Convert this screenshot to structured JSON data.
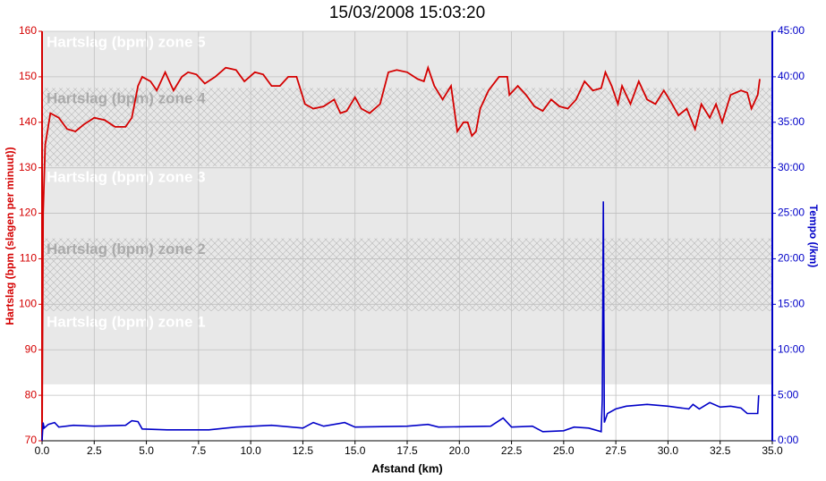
{
  "chart_data": {
    "type": "line",
    "title": "15/03/2008 15:03:20",
    "x_label": "Afstand (km)",
    "y_label": "Hartslag (bpm (slagen per minuut))",
    "y2_label": "Tempo (/km)",
    "xlim": [
      0,
      35
    ],
    "xticks": [
      {
        "value": 0,
        "label": "0.0"
      },
      2.5,
      {
        "value": 5,
        "label": "5.0"
      },
      7.5,
      {
        "value": 10,
        "label": "10.0"
      },
      12.5,
      {
        "value": 15,
        "label": "15.0"
      },
      17.5,
      {
        "value": 20,
        "label": "20.0"
      },
      22.5,
      {
        "value": 25,
        "label": "25.0"
      },
      27.5,
      {
        "value": 30,
        "label": "30.0"
      },
      32.5,
      {
        "value": 35,
        "label": "35.0"
      }
    ],
    "ylim": [
      70,
      160
    ],
    "yticks": [
      70,
      80,
      90,
      100,
      110,
      120,
      130,
      140,
      150,
      160
    ],
    "y2lim": [
      0,
      45
    ],
    "y2ticks": [
      {
        "value": 0,
        "label": "0:00"
      },
      {
        "value": 5,
        "label": "5:00"
      },
      {
        "value": 10,
        "label": "10:00"
      },
      {
        "value": 15,
        "label": "15:00"
      },
      {
        "value": 20,
        "label": "20:00"
      },
      {
        "value": 25,
        "label": "25:00"
      },
      {
        "value": 30,
        "label": "30:00"
      },
      {
        "value": 35,
        "label": "35:00"
      },
      {
        "value": 40,
        "label": "40:00"
      },
      {
        "value": 45,
        "label": "45:00"
      }
    ],
    "grid": true,
    "zones": [
      {
        "name": "Hartslag (bpm) zone 1",
        "range": [
          82.4,
          98.5
        ],
        "hatched": false
      },
      {
        "name": "Hartslag (bpm) zone 2",
        "range": [
          98.5,
          114.5
        ],
        "hatched": true
      },
      {
        "name": "Hartslag (bpm) zone 3",
        "range": [
          114.5,
          130.3
        ],
        "hatched": false
      },
      {
        "name": "Hartslag (bpm) zone 4",
        "range": [
          130.3,
          147.6
        ],
        "hatched": true
      },
      {
        "name": "Hartslag (bpm) zone 5",
        "range": [
          147.6,
          160
        ],
        "hatched": false
      }
    ],
    "series": [
      {
        "name": "Hartslag",
        "color": "#d40000",
        "axis": "y",
        "x": [
          0,
          0.05,
          0.15,
          0.4,
          0.8,
          1.2,
          1.6,
          2.0,
          2.5,
          3.0,
          3.5,
          4.0,
          4.3,
          4.6,
          4.8,
          5.2,
          5.5,
          5.9,
          6.3,
          6.7,
          7.0,
          7.4,
          7.8,
          8.3,
          8.8,
          9.3,
          9.7,
          10.2,
          10.6,
          11.0,
          11.4,
          11.8,
          12.2,
          12.6,
          13.0,
          13.5,
          14.0,
          14.3,
          14.6,
          15.0,
          15.3,
          15.7,
          16.2,
          16.6,
          17.0,
          17.5,
          18.0,
          18.3,
          18.5,
          18.8,
          19.2,
          19.6,
          19.9,
          20.2,
          20.4,
          20.6,
          20.8,
          21.0,
          21.4,
          21.9,
          22.3,
          22.4,
          22.8,
          23.2,
          23.6,
          24.0,
          24.4,
          24.8,
          25.2,
          25.6,
          26.0,
          26.4,
          26.8,
          27.0,
          27.3,
          27.6,
          27.8,
          28.2,
          28.6,
          29.0,
          29.4,
          29.8,
          30.2,
          30.5,
          30.9,
          31.3,
          31.6,
          32.0,
          32.3,
          32.6,
          33.0,
          33.5,
          33.8,
          34.0,
          34.3,
          34.4
        ],
        "values": [
          70,
          120,
          135,
          142,
          141,
          138.5,
          138,
          139.5,
          141,
          140.5,
          139,
          139,
          141,
          148,
          150,
          149,
          147,
          151,
          147,
          150,
          151,
          150.5,
          148.5,
          150,
          152,
          151.5,
          149,
          151,
          150.5,
          148,
          148,
          150,
          150,
          144,
          143,
          143.5,
          145,
          142,
          142.5,
          145.5,
          143,
          142,
          144,
          151,
          151.5,
          151,
          149.5,
          149,
          152,
          148,
          145,
          148,
          138,
          140,
          140,
          137,
          138,
          143,
          147,
          150,
          150,
          146,
          148,
          146,
          143.5,
          142.5,
          145,
          143.5,
          143,
          145,
          149,
          147,
          147.5,
          151,
          148,
          144,
          148,
          144,
          149,
          145,
          144,
          147,
          144,
          141.5,
          143,
          138.5,
          144,
          141,
          144,
          140,
          146,
          147,
          146.5,
          143,
          146,
          149.5
        ]
      },
      {
        "name": "Tempo",
        "color": "#0000c8",
        "axis": "y2",
        "x": [
          0,
          0.05,
          0.1,
          0.3,
          0.6,
          0.8,
          1.5,
          2.5,
          4.0,
          4.3,
          4.6,
          4.8,
          6,
          8,
          9.3,
          11,
          12.5,
          13,
          13.5,
          14.5,
          15,
          17.5,
          18.5,
          19,
          21.5,
          22.1,
          22.5,
          23.5,
          24.0,
          25,
          25.5,
          26.2,
          26.8,
          26.85,
          26.9,
          26.95,
          27.1,
          27.5,
          28,
          29,
          30,
          31,
          31.2,
          31.5,
          32,
          32.5,
          33,
          33.5,
          33.8,
          34.3,
          34.35
        ],
        "values": [
          0,
          2.0,
          1.4,
          1.8,
          2.0,
          1.5,
          1.7,
          1.6,
          1.7,
          2.2,
          2.1,
          1.3,
          1.2,
          1.2,
          1.5,
          1.7,
          1.4,
          2.0,
          1.6,
          2.0,
          1.5,
          1.6,
          1.8,
          1.5,
          1.6,
          2.5,
          1.5,
          1.6,
          1.0,
          1.1,
          1.5,
          1.4,
          1.0,
          4.5,
          26.3,
          2.0,
          3.0,
          3.5,
          3.8,
          4.0,
          3.8,
          3.5,
          4.0,
          3.5,
          4.2,
          3.7,
          3.8,
          3.6,
          3.0,
          3.0,
          5.0
        ]
      }
    ]
  }
}
